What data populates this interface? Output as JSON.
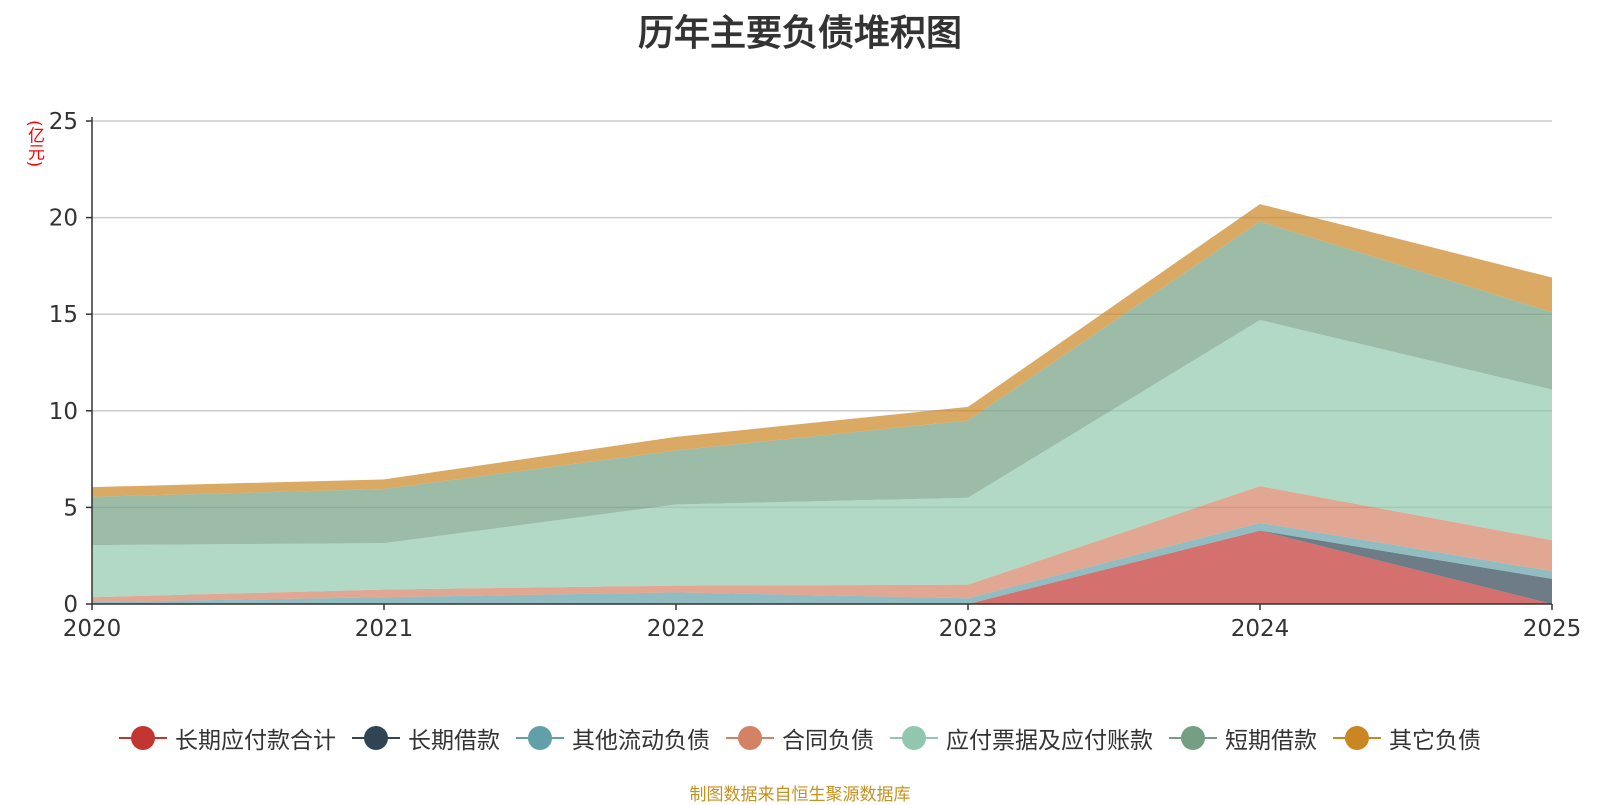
{
  "chart_data": {
    "type": "area",
    "title": "历年主要负债堆积图",
    "unit": "(亿元)",
    "x": [
      "2020",
      "2021",
      "2022",
      "2023",
      "2024",
      "2025"
    ],
    "ylim": [
      0,
      25
    ],
    "yticks": [
      0,
      5,
      10,
      15,
      20,
      25
    ],
    "grid": true,
    "stacked": true,
    "legend_position": "bottom",
    "series": [
      {
        "name": "长期应付款合计",
        "color": "#c23531",
        "values": [
          0,
          0,
          0,
          0,
          3.8,
          0
        ]
      },
      {
        "name": "长期借款",
        "color": "#2f4554",
        "values": [
          0,
          0,
          0,
          0,
          0,
          1.3
        ]
      },
      {
        "name": "其他流动负债",
        "color": "#61a0a8",
        "values": [
          0.1,
          0.35,
          0.6,
          0.3,
          0.4,
          0.4
        ]
      },
      {
        "name": "合同负债",
        "color": "#d48265",
        "values": [
          0.25,
          0.4,
          0.35,
          0.7,
          1.9,
          1.6
        ]
      },
      {
        "name": "应付票据及应付账款",
        "color": "#91c7ae",
        "values": [
          2.7,
          2.4,
          4.2,
          4.5,
          8.6,
          7.8
        ]
      },
      {
        "name": "短期借款",
        "color": "#749f83",
        "values": [
          2.5,
          2.8,
          2.8,
          4.0,
          5.1,
          4.0
        ]
      },
      {
        "name": "其它负债",
        "color": "#ca8622",
        "values": [
          0.5,
          0.5,
          0.7,
          0.7,
          0.9,
          1.8
        ]
      }
    ],
    "source_note": "制图数据来自恒生聚源数据库"
  }
}
